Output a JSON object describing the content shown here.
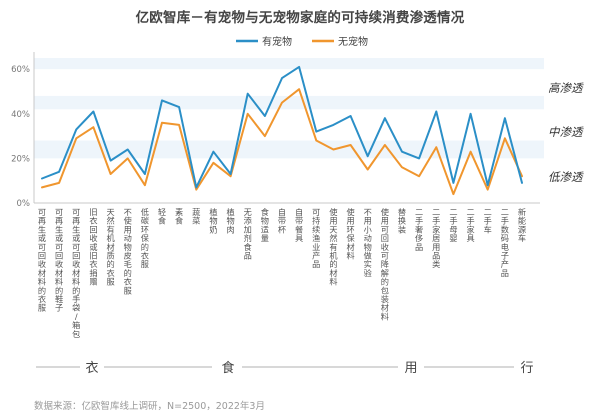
{
  "chart_data": {
    "type": "line",
    "title": "亿欧智库－有宠物与无宠物家庭的可持续消费渗透情况",
    "xlabel": "",
    "ylabel": "",
    "ylim": [
      0,
      0.65
    ],
    "yticks": [
      0,
      0.2,
      0.4,
      0.6
    ],
    "ytick_labels": [
      "0%",
      "20%",
      "40%",
      "60%"
    ],
    "grid": false,
    "legend_position": "top-center",
    "categories": [
      "可再生或可回收材料的衣服",
      "可再生或可回收材料的鞋子",
      "可再生或可回收材料的手袋/箱包",
      "旧衣回收或旧衣捐赠",
      "天然有机材质的衣服",
      "不使用动物皮毛的衣服",
      "低碳环保的衣服",
      "轻食",
      "素食",
      "蔬菜",
      "植物奶",
      "植物肉",
      "无添加剂食品",
      "食物适量",
      "自带杯",
      "自带餐具",
      "可持续渔业产品",
      "使用天然有机的材料",
      "使用环保材料",
      "不用小动物做实验",
      "使用可回收可降解的包装材料",
      "替换装",
      "二手奢侈品",
      "二手家居用品类",
      "二手母婴",
      "二手家具",
      "二手车",
      "二手数码电子产品",
      "新能源车"
    ],
    "category_labels": [
      "可再生或可回收材料的衣服",
      "可再生或可回收材料的鞋子",
      "可再生或可回收材料的手袋/箱包",
      "旧衣回收或旧衣捐赠",
      "天然有机材质的衣服",
      "不使用动物皮毛的衣服",
      "低碳环保的衣服",
      "轻食",
      "素食",
      "蔬菜",
      "植物奶",
      "植物肉",
      "无添加剂食品",
      "食物适量",
      "自带杯",
      "自带餐具",
      "可持续渔业产品",
      "使用天然有机的材料",
      "使用环保材料",
      "不用小动物做实验",
      "使用可回收可降解的包装材料",
      "替换装",
      "二手奢侈品",
      "二手家居用品类",
      "二手母婴",
      "二手家具",
      "二手车",
      "二手数码电子产品",
      "新能源车"
    ],
    "series": [
      {
        "name": "有宠物",
        "color": "#2b8fc7",
        "values": [
          0.11,
          0.14,
          0.33,
          0.41,
          0.19,
          0.24,
          0.13,
          0.46,
          0.43,
          0.07,
          0.23,
          0.13,
          0.49,
          0.39,
          0.56,
          0.61,
          0.32,
          0.35,
          0.39,
          0.21,
          0.38,
          0.23,
          0.2,
          0.41,
          0.09,
          0.4,
          0.08,
          0.38,
          0.09
        ]
      },
      {
        "name": "无宠物",
        "color": "#f0962e",
        "values": [
          0.07,
          0.09,
          0.29,
          0.34,
          0.13,
          0.2,
          0.08,
          0.36,
          0.35,
          0.06,
          0.18,
          0.12,
          0.4,
          0.3,
          0.45,
          0.51,
          0.28,
          0.24,
          0.26,
          0.15,
          0.26,
          0.16,
          0.12,
          0.25,
          0.04,
          0.23,
          0.06,
          0.29,
          0.12
        ]
      }
    ],
    "penetration_labels": [
      "高渗透",
      "中渗透",
      "低渗透"
    ],
    "groups": [
      {
        "label": "衣",
        "first_index": 0,
        "last_index": 6
      },
      {
        "label": "食",
        "first_index": 7,
        "last_index": 16
      },
      {
        "label": "用",
        "first_index": 17,
        "last_index": 23
      },
      {
        "label": "行",
        "first_index": 24,
        "last_index": 28
      }
    ],
    "colors": {
      "band": "#cfe3f3",
      "axis": "#c8c8c8",
      "tick_text": "#777777",
      "category_text": "#555555",
      "group_line": "#c0c0c0"
    }
  },
  "source": "数据来源：亿欧智库线上调研，N=2500，2022年3月"
}
